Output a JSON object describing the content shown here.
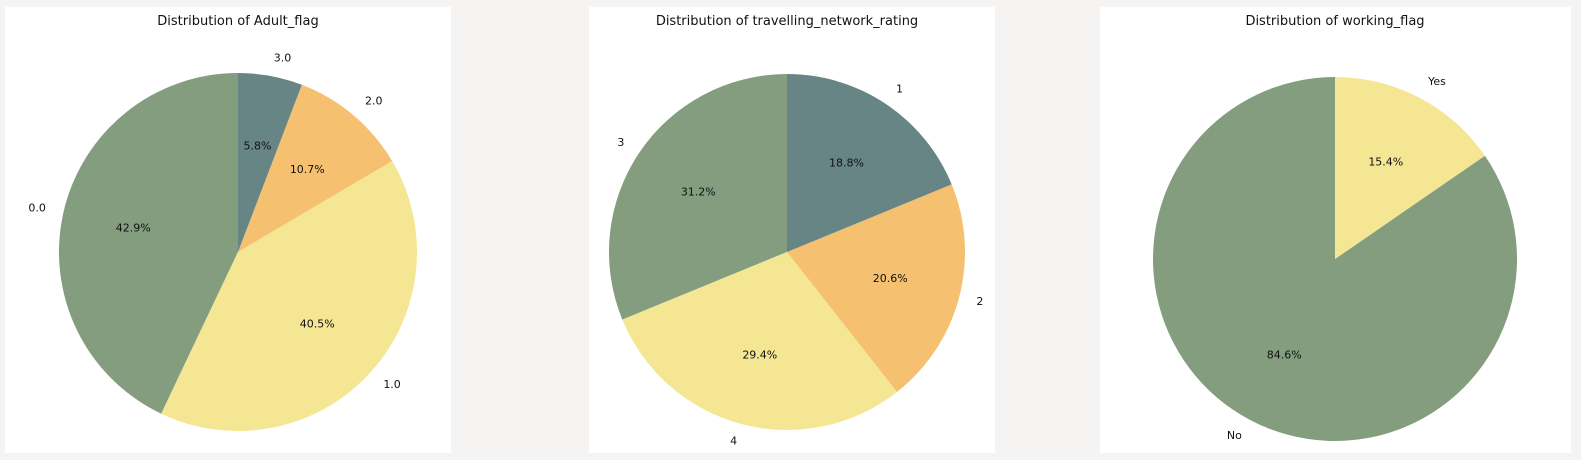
{
  "chart_data": [
    {
      "type": "pie",
      "title": "Distribution of Adult_flag",
      "categories": [
        "0.0",
        "1.0",
        "2.0",
        "3.0"
      ],
      "values": [
        42.9,
        40.5,
        10.7,
        5.8
      ],
      "value_labels": [
        "42.9%",
        "40.5%",
        "10.7%",
        "5.8%"
      ],
      "colors": [
        "#839d7e",
        "#f5e694",
        "#f5c170",
        "#688585"
      ],
      "start_angle_deg": 90,
      "direction": "counterclockwise"
    },
    {
      "type": "pie",
      "title": "Distribution of travelling_network_rating",
      "categories": [
        "3",
        "4",
        "2",
        "1"
      ],
      "values": [
        31.2,
        29.4,
        20.6,
        18.8
      ],
      "value_labels": [
        "31.2%",
        "29.4%",
        "20.6%",
        "18.8%"
      ],
      "colors": [
        "#839d7e",
        "#f5e694",
        "#f5c170",
        "#688585"
      ],
      "start_angle_deg": 90,
      "direction": "counterclockwise"
    },
    {
      "type": "pie",
      "title": "Distribution of working_flag",
      "categories": [
        "No",
        "Yes"
      ],
      "values": [
        84.6,
        15.4
      ],
      "value_labels": [
        "84.6%",
        "15.4%"
      ],
      "colors": [
        "#839d7e",
        "#f5e694"
      ],
      "start_angle_deg": 90,
      "direction": "counterclockwise"
    }
  ]
}
